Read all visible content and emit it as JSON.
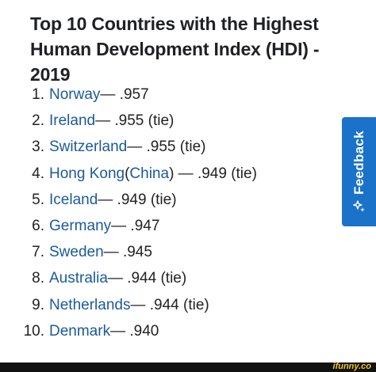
{
  "title": "Top 10 Countries with the Highest Human Development Index (HDI) - 2019",
  "list": [
    {
      "num": "1.",
      "country": "Norway",
      "rest": " — .957"
    },
    {
      "num": "2.",
      "country": "Ireland",
      "rest": " — .955 (tie)"
    },
    {
      "num": "3.",
      "country": "Switzerland",
      "rest": " — .955 (tie)"
    },
    {
      "num": "4.",
      "country": "Hong Kong",
      "mid": " (",
      "country2": "China",
      "rest": ") — .949 (tie)"
    },
    {
      "num": "5.",
      "country": "Iceland",
      "rest": " — .949 (tie)"
    },
    {
      "num": "6.",
      "country": "Germany",
      "rest": " — .947"
    },
    {
      "num": "7.",
      "country": "Sweden",
      "rest": " — .945"
    },
    {
      "num": "8.",
      "country": "Australia",
      "rest": " — .944 (tie)"
    },
    {
      "num": "9.",
      "country": "Netherlands",
      "rest": " — .944 (tie)"
    },
    {
      "num": "10.",
      "country": "Denmark",
      "rest": " — .940"
    }
  ],
  "feedback": {
    "label": "Feedback",
    "icon": "star-sparkle-icon"
  },
  "watermark": "ifunny.co",
  "colors": {
    "link": "#1a5a9c",
    "feedback_bg": "#1a73c8",
    "watermark": "#f5c518"
  }
}
